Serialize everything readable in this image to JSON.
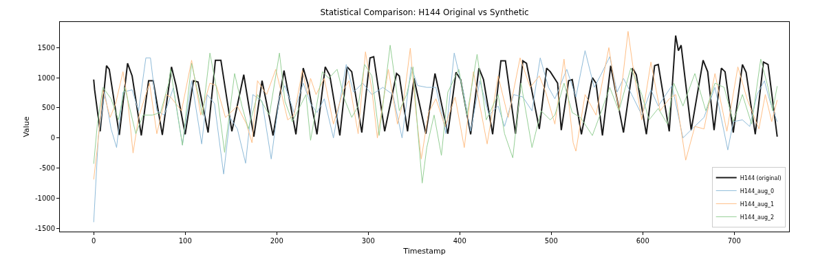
{
  "chart_data": {
    "type": "line",
    "title": "Statistical Comparison: H144 Original vs Synthetic",
    "xlabel": "Timestamp",
    "ylabel": "Value",
    "xlim": [
      -37,
      760
    ],
    "ylim": [
      -1556,
      1926
    ],
    "xticks": [
      0,
      100,
      200,
      300,
      400,
      500,
      600,
      700
    ],
    "yticks": [
      -1500,
      -1000,
      -500,
      0,
      500,
      1000,
      1500
    ],
    "legend": "bottom right",
    "marker": "none",
    "line_style": "solid",
    "series": [
      {
        "name": "H144 (original)",
        "color": "#1a1a1a",
        "x": [
          0,
          1,
          7,
          14,
          17,
          28,
          37,
          42,
          52,
          60,
          65,
          75,
          85,
          90,
          100,
          109,
          114,
          125,
          133,
          139,
          151,
          164,
          175,
          184,
          196,
          208,
          221,
          229,
          234,
          244,
          253,
          258,
          269,
          277,
          282,
          293,
          302,
          306,
          318,
          331,
          334,
          343,
          350,
          363,
          373,
          378,
          387,
          396,
          401,
          412,
          421,
          426,
          436,
          445,
          450,
          461,
          469,
          473,
          487,
          495,
          499,
          507,
          511,
          519,
          523,
          533,
          545,
          549,
          556,
          565,
          579,
          589,
          593,
          604,
          613,
          617,
          629,
          636,
          639,
          642,
          653,
          666,
          671,
          678,
          686,
          690,
          699,
          709,
          713,
          723,
          732,
          737,
          747
        ],
        "values": [
          970,
          800,
          110,
          1200,
          1140,
          50,
          1240,
          1030,
          40,
          950,
          950,
          50,
          1180,
          870,
          60,
          950,
          930,
          90,
          1290,
          1290,
          110,
          1050,
          20,
          950,
          40,
          1120,
          60,
          1160,
          900,
          60,
          1180,
          1040,
          40,
          1180,
          1100,
          90,
          1330,
          1350,
          110,
          1070,
          1030,
          110,
          990,
          70,
          1070,
          720,
          70,
          1090,
          970,
          60,
          1160,
          970,
          60,
          1280,
          1280,
          70,
          1280,
          1240,
          150,
          1160,
          1100,
          910,
          130,
          950,
          970,
          60,
          1000,
          910,
          40,
          1200,
          90,
          1160,
          1050,
          60,
          1200,
          1220,
          110,
          1700,
          1450,
          1540,
          130,
          1290,
          1100,
          130,
          1160,
          1100,
          90,
          1220,
          1090,
          60,
          1260,
          1220,
          20
        ]
      },
      {
        "name": "H144_aug_0",
        "color": "#8fbbd9",
        "x": [
          0,
          5,
          12,
          19,
          25,
          32,
          42,
          49,
          57,
          62,
          69,
          77,
          87,
          97,
          107,
          118,
          124,
          132,
          142,
          149,
          157,
          166,
          174,
          184,
          194,
          203,
          209,
          219,
          229,
          237,
          244,
          252,
          262,
          276,
          284,
          294,
          304,
          316,
          327,
          337,
          347,
          354,
          364,
          374,
          385,
          394,
          404,
          412,
          422,
          432,
          442,
          449,
          459,
          469,
          479,
          488,
          497,
          504,
          507,
          517,
          527,
          537,
          547,
          555,
          564,
          572,
          579,
          588,
          599,
          609,
          617,
          632,
          644,
          654,
          667,
          679,
          693,
          699,
          709,
          717,
          725,
          733,
          739,
          747
        ],
        "values": [
          -1400,
          0,
          760,
          150,
          -160,
          760,
          800,
          450,
          1330,
          1330,
          450,
          380,
          830,
          -120,
          950,
          -100,
          720,
          570,
          -600,
          340,
          150,
          -420,
          720,
          610,
          -350,
          680,
          870,
          420,
          910,
          570,
          420,
          650,
          0,
          1220,
          760,
          910,
          720,
          840,
          720,
          0,
          1180,
          870,
          840,
          840,
          70,
          1410,
          760,
          110,
          950,
          380,
          530,
          190,
          720,
          680,
          450,
          1330,
          840,
          650,
          760,
          1140,
          680,
          1450,
          840,
          1070,
          1350,
          760,
          990,
          720,
          380,
          800,
          530,
          870,
          0,
          150,
          340,
          840,
          -200,
          270,
          300,
          190,
          720,
          950,
          610,
          270
        ]
      },
      {
        "name": "H144_aug_1",
        "color": "#ffbf86",
        "x": [
          0,
          4,
          10,
          18,
          24,
          32,
          37,
          43,
          49,
          61,
          69,
          79,
          84,
          96,
          107,
          117,
          127,
          134,
          144,
          157,
          167,
          173,
          179,
          189,
          199,
          212,
          219,
          228,
          234,
          237,
          243,
          252,
          262,
          273,
          279,
          289,
          297,
          304,
          310,
          322,
          332,
          339,
          346,
          352,
          358,
          366,
          374,
          384,
          395,
          405,
          415,
          430,
          442,
          453,
          466,
          477,
          487,
          494,
          504,
          514,
          524,
          527,
          537,
          549,
          563,
          574,
          584,
          589,
          599,
          609,
          619,
          629,
          636,
          647,
          657,
          667,
          679,
          692,
          704,
          714,
          727,
          734,
          741,
          747
        ],
        "values": [
          -690,
          -160,
          800,
          340,
          570,
          1100,
          650,
          -250,
          340,
          910,
          70,
          720,
          680,
          450,
          1290,
          380,
          910,
          870,
          340,
          530,
          230,
          -80,
          950,
          720,
          1140,
          300,
          380,
          1120,
          720,
          990,
          720,
          990,
          230,
          800,
          950,
          70,
          1430,
          800,
          0,
          1140,
          230,
          650,
          1490,
          450,
          -350,
          420,
          650,
          190,
          680,
          -160,
          1100,
          -100,
          1030,
          340,
          1330,
          840,
          1030,
          760,
          230,
          1310,
          -80,
          -220,
          720,
          380,
          1500,
          450,
          1770,
          1220,
          300,
          1260,
          450,
          650,
          720,
          -370,
          190,
          150,
          1070,
          110,
          1180,
          650,
          150,
          720,
          270,
          630
        ]
      },
      {
        "name": "H144_aug_2",
        "color": "#95cf95",
        "x": [
          0,
          4,
          10,
          19,
          27,
          34,
          46,
          54,
          64,
          73,
          82,
          84,
          97,
          107,
          119,
          127,
          134,
          143,
          154,
          162,
          169,
          179,
          192,
          203,
          209,
          217,
          232,
          237,
          250,
          257,
          266,
          274,
          282,
          289,
          296,
          304,
          312,
          324,
          334,
          342,
          349,
          354,
          359,
          364,
          372,
          380,
          387,
          399,
          408,
          419,
          429,
          442,
          449,
          458,
          467,
          479,
          489,
          499,
          504,
          507,
          514,
          523,
          532,
          545,
          555,
          564,
          574,
          587,
          599,
          607,
          617,
          627,
          634,
          644,
          657,
          669,
          679,
          689,
          699,
          709,
          719,
          729,
          737,
          742,
          747
        ],
        "values": [
          -430,
          230,
          840,
          650,
          300,
          840,
          70,
          380,
          380,
          420,
          910,
          1140,
          -120,
          1240,
          380,
          1410,
          840,
          -240,
          1070,
          530,
          150,
          720,
          380,
          1410,
          610,
          270,
          720,
          -40,
          1100,
          990,
          1140,
          650,
          340,
          530,
          1220,
          1030,
          40,
          1540,
          450,
          720,
          1180,
          150,
          -750,
          -160,
          380,
          -290,
          760,
          1140,
          380,
          1390,
          300,
          720,
          70,
          -330,
          910,
          -160,
          450,
          300,
          380,
          530,
          910,
          420,
          340,
          40,
          450,
          840,
          450,
          1160,
          720,
          300,
          490,
          230,
          910,
          530,
          1070,
          450,
          910,
          840,
          270,
          720,
          230,
          1310,
          840,
          450,
          860
        ]
      }
    ]
  }
}
